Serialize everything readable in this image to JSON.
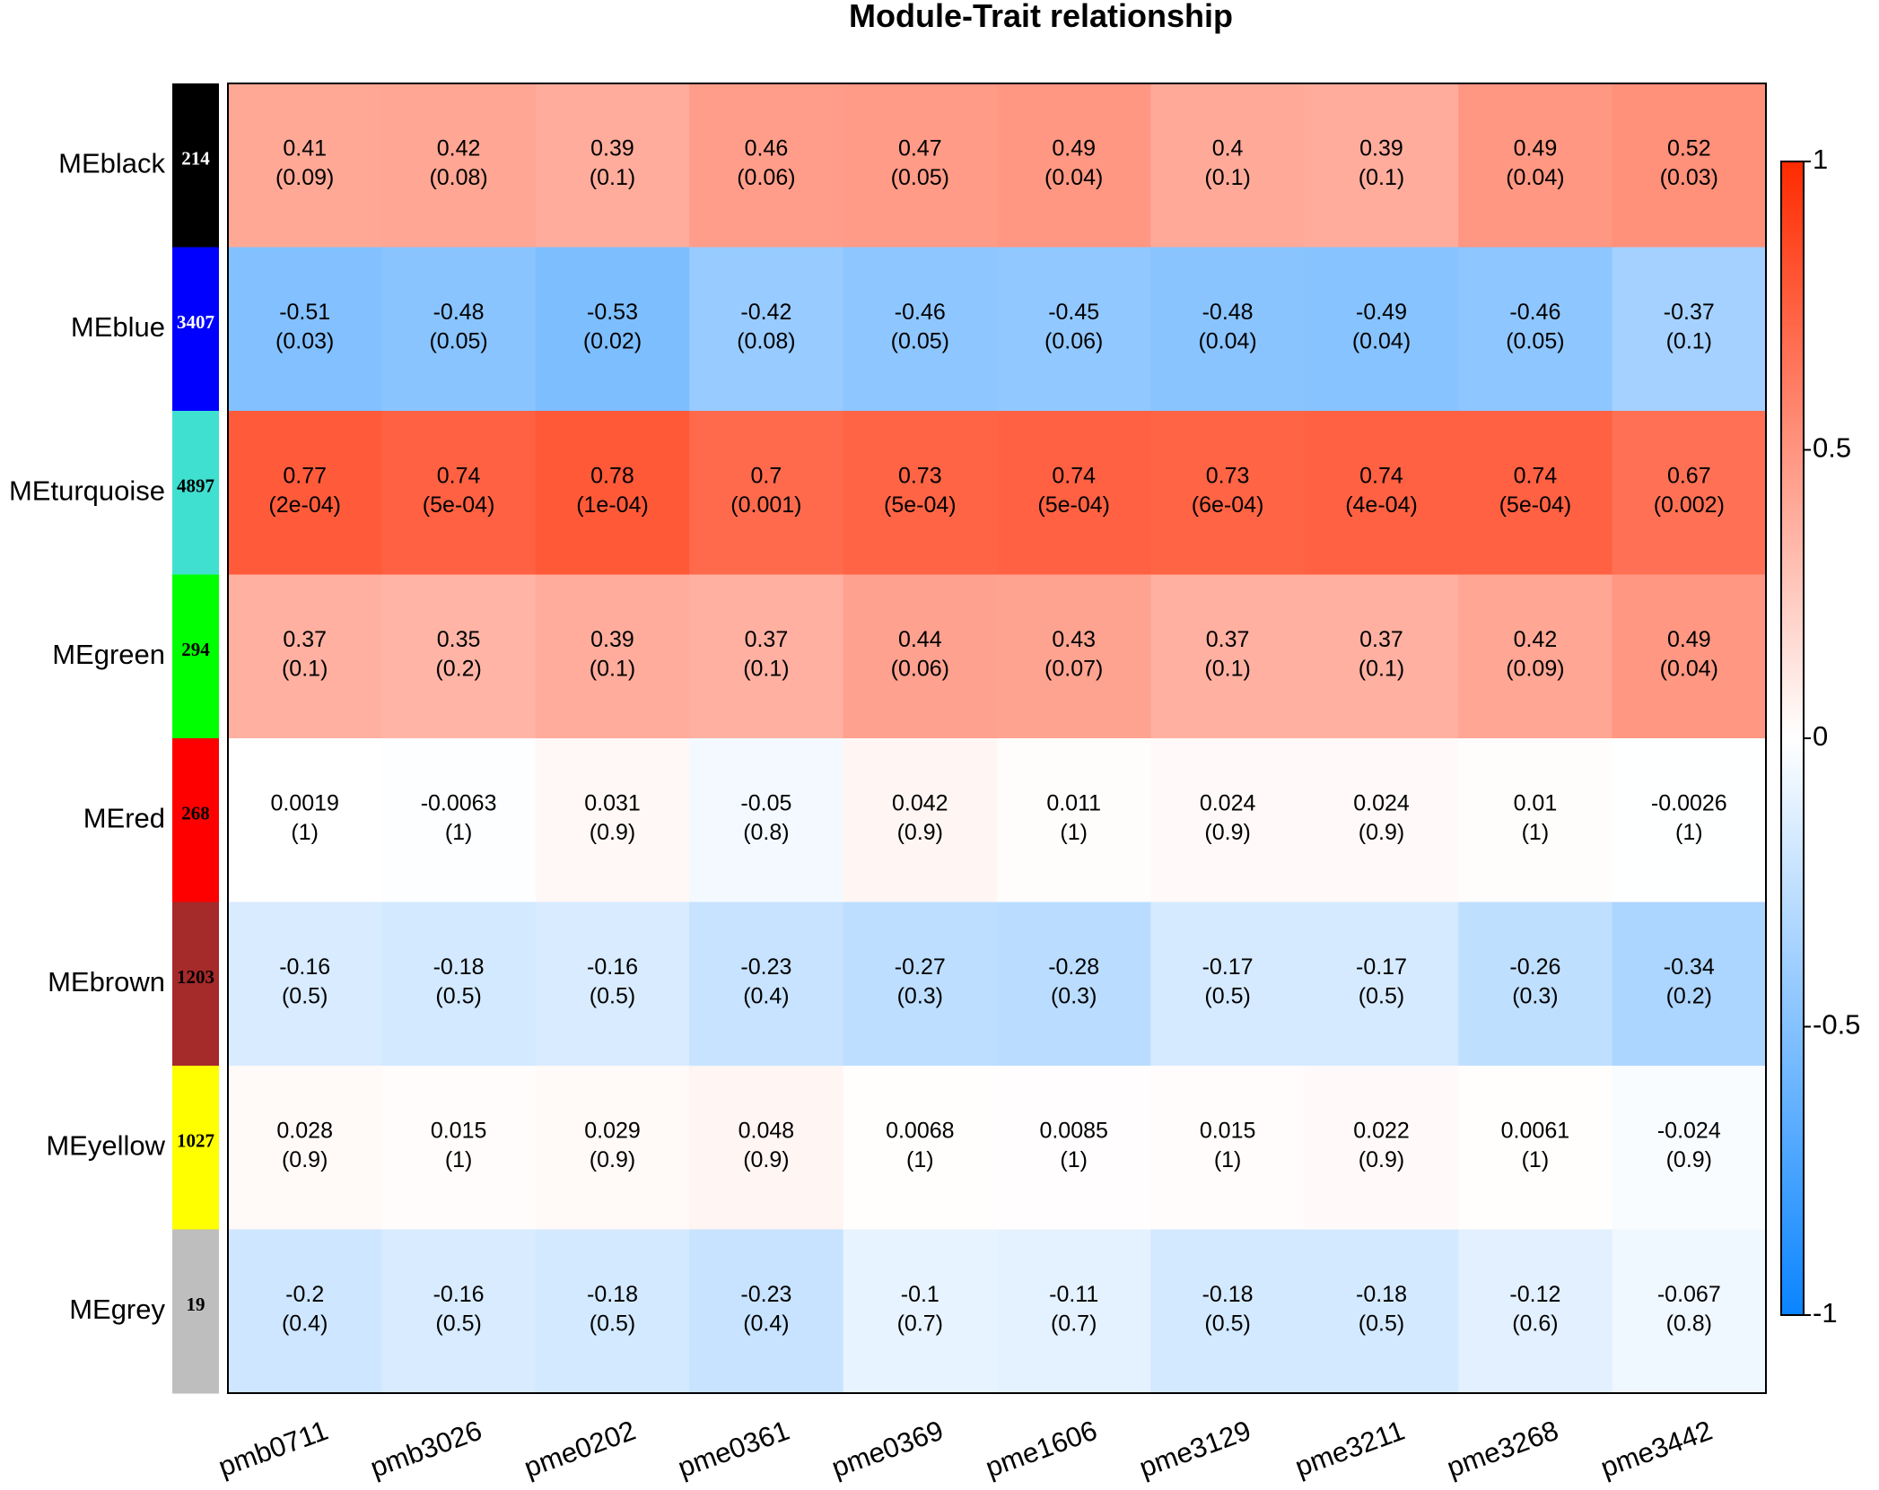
{
  "chart_data": {
    "type": "heatmap",
    "title": "Module-Trait relationship",
    "columns": [
      "pmb0711",
      "pmb3026",
      "pme0202",
      "pme0361",
      "pme0369",
      "pme1606",
      "pme3129",
      "pme3211",
      "pme3268",
      "pme3442"
    ],
    "rows": [
      {
        "name": "MEblack",
        "color": "#000000",
        "count": "214",
        "count_color": "#ffffff",
        "values": [
          0.41,
          0.42,
          0.39,
          0.46,
          0.47,
          0.49,
          0.4,
          0.39,
          0.49,
          0.52
        ],
        "labels": [
          "0.41",
          "0.42",
          "0.39",
          "0.46",
          "0.47",
          "0.49",
          "0.4",
          "0.39",
          "0.49",
          "0.52"
        ],
        "pvalues": [
          "(0.09)",
          "(0.08)",
          "(0.1)",
          "(0.06)",
          "(0.05)",
          "(0.04)",
          "(0.1)",
          "(0.1)",
          "(0.04)",
          "(0.03)"
        ]
      },
      {
        "name": "MEblue",
        "color": "#0000ff",
        "count": "3407",
        "count_color": "#ffffff",
        "values": [
          -0.51,
          -0.48,
          -0.53,
          -0.42,
          -0.46,
          -0.45,
          -0.48,
          -0.49,
          -0.46,
          -0.37
        ],
        "labels": [
          "-0.51",
          "-0.48",
          "-0.53",
          "-0.42",
          "-0.46",
          "-0.45",
          "-0.48",
          "-0.49",
          "-0.46",
          "-0.37"
        ],
        "pvalues": [
          "(0.03)",
          "(0.05)",
          "(0.02)",
          "(0.08)",
          "(0.05)",
          "(0.06)",
          "(0.04)",
          "(0.04)",
          "(0.05)",
          "(0.1)"
        ]
      },
      {
        "name": "MEturquoise",
        "color": "#40e0d0",
        "count": "4897",
        "count_color": "#000000",
        "values": [
          0.77,
          0.74,
          0.78,
          0.7,
          0.73,
          0.74,
          0.73,
          0.74,
          0.74,
          0.67
        ],
        "labels": [
          "0.77",
          "0.74",
          "0.78",
          "0.7",
          "0.73",
          "0.74",
          "0.73",
          "0.74",
          "0.74",
          "0.67"
        ],
        "pvalues": [
          "(2e-04)",
          "(5e-04)",
          "(1e-04)",
          "(0.001)",
          "(5e-04)",
          "(5e-04)",
          "(6e-04)",
          "(4e-04)",
          "(5e-04)",
          "(0.002)"
        ]
      },
      {
        "name": "MEgreen",
        "color": "#00ff00",
        "count": "294",
        "count_color": "#000000",
        "values": [
          0.37,
          0.35,
          0.39,
          0.37,
          0.44,
          0.43,
          0.37,
          0.37,
          0.42,
          0.49
        ],
        "labels": [
          "0.37",
          "0.35",
          "0.39",
          "0.37",
          "0.44",
          "0.43",
          "0.37",
          "0.37",
          "0.42",
          "0.49"
        ],
        "pvalues": [
          "(0.1)",
          "(0.2)",
          "(0.1)",
          "(0.1)",
          "(0.06)",
          "(0.07)",
          "(0.1)",
          "(0.1)",
          "(0.09)",
          "(0.04)"
        ]
      },
      {
        "name": "MEred",
        "color": "#ff0000",
        "count": "268",
        "count_color": "#000000",
        "values": [
          0.0019,
          -0.0063,
          0.031,
          -0.05,
          0.042,
          0.011,
          0.024,
          0.024,
          0.01,
          -0.0026
        ],
        "labels": [
          "0.0019",
          "-0.0063",
          "0.031",
          "-0.05",
          "0.042",
          "0.011",
          "0.024",
          "0.024",
          "0.01",
          "-0.0026"
        ],
        "pvalues": [
          "(1)",
          "(1)",
          "(0.9)",
          "(0.8)",
          "(0.9)",
          "(1)",
          "(0.9)",
          "(0.9)",
          "(1)",
          "(1)"
        ]
      },
      {
        "name": "MEbrown",
        "color": "#a52a2a",
        "count": "1203",
        "count_color": "#000000",
        "values": [
          -0.16,
          -0.18,
          -0.16,
          -0.23,
          -0.27,
          -0.28,
          -0.17,
          -0.17,
          -0.26,
          -0.34
        ],
        "labels": [
          "-0.16",
          "-0.18",
          "-0.16",
          "-0.23",
          "-0.27",
          "-0.28",
          "-0.17",
          "-0.17",
          "-0.26",
          "-0.34"
        ],
        "pvalues": [
          "(0.5)",
          "(0.5)",
          "(0.5)",
          "(0.4)",
          "(0.3)",
          "(0.3)",
          "(0.5)",
          "(0.5)",
          "(0.3)",
          "(0.2)"
        ]
      },
      {
        "name": "MEyellow",
        "color": "#ffff00",
        "count": "1027",
        "count_color": "#000000",
        "values": [
          0.028,
          0.015,
          0.029,
          0.048,
          0.0068,
          0.0085,
          0.015,
          0.022,
          0.0061,
          -0.024
        ],
        "labels": [
          "0.028",
          "0.015",
          "0.029",
          "0.048",
          "0.0068",
          "0.0085",
          "0.015",
          "0.022",
          "0.0061",
          "-0.024"
        ],
        "pvalues": [
          "(0.9)",
          "(1)",
          "(0.9)",
          "(0.9)",
          "(1)",
          "(1)",
          "(1)",
          "(0.9)",
          "(1)",
          "(0.9)"
        ]
      },
      {
        "name": "MEgrey",
        "color": "#bebebe",
        "count": "19",
        "count_color": "#000000",
        "values": [
          -0.2,
          -0.16,
          -0.18,
          -0.23,
          -0.1,
          -0.11,
          -0.18,
          -0.18,
          -0.12,
          -0.067
        ],
        "labels": [
          "-0.2",
          "-0.16",
          "-0.18",
          "-0.23",
          "-0.1",
          "-0.11",
          "-0.18",
          "-0.18",
          "-0.12",
          "-0.067"
        ],
        "pvalues": [
          "(0.4)",
          "(0.5)",
          "(0.5)",
          "(0.4)",
          "(0.7)",
          "(0.7)",
          "(0.5)",
          "(0.5)",
          "(0.6)",
          "(0.8)"
        ]
      }
    ],
    "colorbar": {
      "range": [
        -1,
        1
      ],
      "ticks": [
        1,
        0.5,
        0,
        -0.5,
        -1
      ],
      "tick_labels": [
        "1",
        "0.5",
        "0",
        "-0.5",
        "-1"
      ],
      "low_color": "#0a84ff",
      "mid_color": "#ffffff",
      "high_color": "#ff2a00"
    }
  }
}
